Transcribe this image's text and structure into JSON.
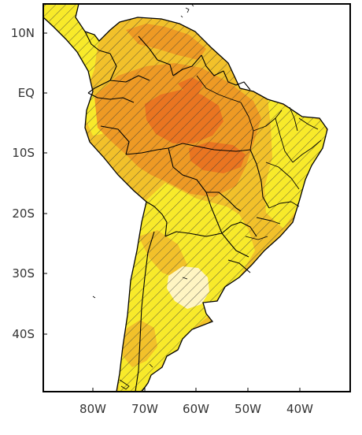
{
  "map": {
    "lat_labels": [
      "10N",
      "EQ",
      "10S",
      "20S",
      "30S",
      "40S"
    ],
    "lon_labels": [
      "80W",
      "70W",
      "60W",
      "50W",
      "40W"
    ],
    "colors": {
      "ocean": "#ffffff",
      "level_pale": "#fff5c2",
      "level_yellow": "#f8ea2a",
      "level_gold": "#f2c12a",
      "level_orange": "#ee9a24",
      "level_dark_orange": "#ea7520",
      "border": "#000000",
      "hatch": "#3a3a3a"
    }
  }
}
